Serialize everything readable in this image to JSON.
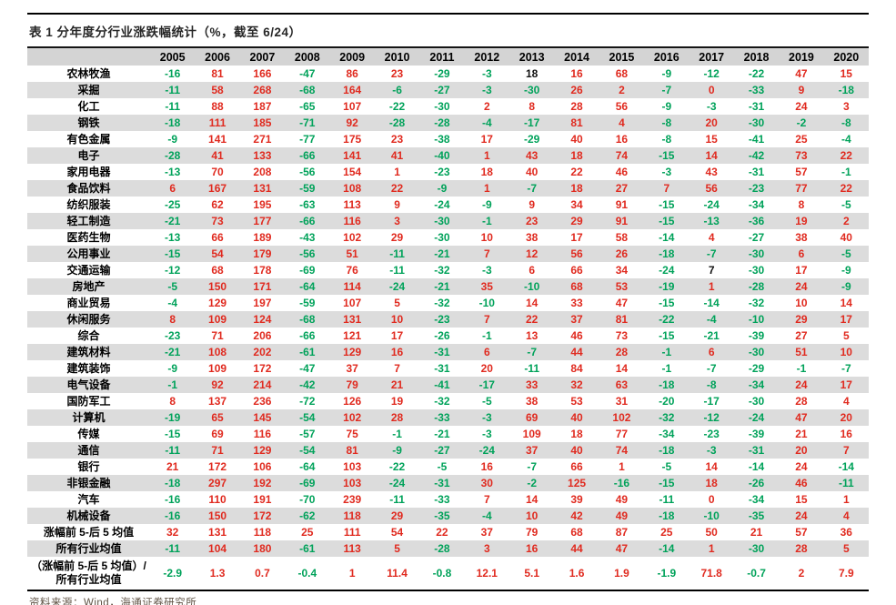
{
  "page": {
    "title": "表 1 分年度分行业涨跌幅统计（%，截至 6/24）",
    "source": "资料来源：Wind，海通证券研究所"
  },
  "colors": {
    "positive_value": "#e02a1f",
    "negative_value": "#00a25a",
    "neutral_value": "#111111",
    "header_bg": "#d4d4d4",
    "stripe_bg": "#dcdcdc",
    "title_text": "#262626",
    "source_text": "#5f5244"
  },
  "chart_data": {
    "type": "table",
    "columns": [
      "2005",
      "2006",
      "2007",
      "2008",
      "2009",
      "2010",
      "2011",
      "2012",
      "2013",
      "2014",
      "2015",
      "2016",
      "2017",
      "2018",
      "2019",
      "2020"
    ],
    "rows": [
      {
        "label": "农林牧渔",
        "values": [
          -16,
          81,
          166,
          -47,
          86,
          23,
          -29,
          -3,
          18,
          16,
          68,
          -9,
          -12,
          -22,
          47,
          15
        ]
      },
      {
        "label": "采掘",
        "values": [
          -11,
          58,
          268,
          -68,
          164,
          -6,
          -27,
          -3,
          -30,
          26,
          2,
          -7,
          0,
          -33,
          9,
          -18
        ]
      },
      {
        "label": "化工",
        "values": [
          -11,
          88,
          187,
          -65,
          107,
          -22,
          -30,
          2,
          8,
          28,
          56,
          -9,
          -3,
          -31,
          24,
          3
        ]
      },
      {
        "label": "钢铁",
        "values": [
          -18,
          111,
          185,
          -71,
          92,
          -28,
          -28,
          -4,
          -17,
          81,
          4,
          -8,
          20,
          -30,
          -2,
          -8
        ]
      },
      {
        "label": "有色金属",
        "values": [
          -9,
          141,
          271,
          -77,
          175,
          23,
          -38,
          17,
          -29,
          40,
          16,
          -8,
          15,
          -41,
          25,
          -4
        ]
      },
      {
        "label": "电子",
        "values": [
          -28,
          41,
          133,
          -66,
          141,
          41,
          -40,
          1,
          43,
          18,
          74,
          -15,
          14,
          -42,
          73,
          22
        ]
      },
      {
        "label": "家用电器",
        "values": [
          -13,
          70,
          208,
          -56,
          154,
          1,
          -23,
          18,
          40,
          22,
          46,
          -3,
          43,
          -31,
          57,
          -1
        ]
      },
      {
        "label": "食品饮料",
        "values": [
          6,
          167,
          131,
          -59,
          108,
          22,
          -9,
          1,
          -7,
          18,
          27,
          7,
          56,
          -23,
          77,
          22
        ]
      },
      {
        "label": "纺织服装",
        "values": [
          -25,
          62,
          195,
          -63,
          113,
          9,
          -24,
          -9,
          9,
          34,
          91,
          -15,
          -24,
          -34,
          8,
          -5
        ]
      },
      {
        "label": "轻工制造",
        "values": [
          -21,
          73,
          177,
          -66,
          116,
          3,
          -30,
          -1,
          23,
          29,
          91,
          -15,
          -13,
          -36,
          19,
          2
        ]
      },
      {
        "label": "医药生物",
        "values": [
          -13,
          66,
          189,
          -43,
          102,
          29,
          -30,
          10,
          38,
          17,
          58,
          -14,
          4,
          -27,
          38,
          40
        ]
      },
      {
        "label": "公用事业",
        "values": [
          -15,
          54,
          179,
          -56,
          51,
          -11,
          -21,
          7,
          12,
          56,
          26,
          -18,
          -7,
          -30,
          6,
          -5
        ]
      },
      {
        "label": "交通运输",
        "values": [
          -12,
          68,
          178,
          -69,
          76,
          -11,
          -32,
          -3,
          6,
          66,
          34,
          -24,
          7,
          -30,
          17,
          -9
        ]
      },
      {
        "label": "房地产",
        "values": [
          -5,
          150,
          171,
          -64,
          114,
          -24,
          -21,
          35,
          -10,
          68,
          53,
          -19,
          1,
          -28,
          24,
          -9
        ]
      },
      {
        "label": "商业贸易",
        "values": [
          -4,
          129,
          197,
          -59,
          107,
          5,
          -32,
          -10,
          14,
          33,
          47,
          -15,
          -14,
          -32,
          10,
          14
        ]
      },
      {
        "label": "休闲服务",
        "values": [
          8,
          109,
          124,
          -68,
          131,
          10,
          -23,
          7,
          22,
          37,
          81,
          -22,
          -4,
          -10,
          29,
          17
        ]
      },
      {
        "label": "综合",
        "values": [
          -23,
          71,
          206,
          -66,
          121,
          17,
          -26,
          -1,
          13,
          46,
          73,
          -15,
          -21,
          -39,
          27,
          5
        ]
      },
      {
        "label": "建筑材料",
        "values": [
          -21,
          108,
          202,
          -61,
          129,
          16,
          -31,
          6,
          -7,
          44,
          28,
          -1,
          6,
          -30,
          51,
          10
        ]
      },
      {
        "label": "建筑装饰",
        "values": [
          -9,
          109,
          172,
          -47,
          37,
          7,
          -31,
          20,
          -11,
          84,
          14,
          -1,
          -7,
          -29,
          -1,
          -7
        ]
      },
      {
        "label": "电气设备",
        "values": [
          -1,
          92,
          214,
          -42,
          79,
          21,
          -41,
          -17,
          33,
          32,
          63,
          -18,
          -8,
          -34,
          24,
          17
        ]
      },
      {
        "label": "国防军工",
        "values": [
          8,
          137,
          236,
          -72,
          126,
          19,
          -32,
          -5,
          38,
          53,
          31,
          -20,
          -17,
          -30,
          28,
          4
        ]
      },
      {
        "label": "计算机",
        "values": [
          -19,
          65,
          145,
          -54,
          102,
          28,
          -33,
          -3,
          69,
          40,
          102,
          -32,
          -12,
          -24,
          47,
          20
        ]
      },
      {
        "label": "传媒",
        "values": [
          -15,
          69,
          116,
          -57,
          75,
          -1,
          -21,
          -3,
          109,
          18,
          77,
          -34,
          -23,
          -39,
          21,
          16
        ]
      },
      {
        "label": "通信",
        "values": [
          -11,
          71,
          129,
          -54,
          81,
          -9,
          -27,
          -24,
          37,
          40,
          74,
          -18,
          -3,
          -31,
          20,
          7
        ]
      },
      {
        "label": "银行",
        "values": [
          21,
          172,
          106,
          -64,
          103,
          -22,
          -5,
          16,
          -7,
          66,
          1,
          -5,
          14,
          -14,
          24,
          -14
        ]
      },
      {
        "label": "非银金融",
        "values": [
          -18,
          297,
          192,
          -69,
          103,
          -24,
          -31,
          30,
          -2,
          125,
          -16,
          -15,
          18,
          -26,
          46,
          -11
        ]
      },
      {
        "label": "汽车",
        "values": [
          -16,
          110,
          191,
          -70,
          239,
          -11,
          -33,
          7,
          14,
          39,
          49,
          -11,
          0,
          -34,
          15,
          1
        ]
      },
      {
        "label": "机械设备",
        "values": [
          -16,
          150,
          172,
          -62,
          118,
          29,
          -35,
          -4,
          10,
          42,
          49,
          -18,
          -10,
          -35,
          24,
          4
        ]
      },
      {
        "label": "涨幅前 5-后 5 均值",
        "values": [
          32,
          131,
          118,
          25,
          111,
          54,
          22,
          37,
          79,
          68,
          87,
          25,
          50,
          21,
          57,
          36
        ]
      },
      {
        "label": "所有行业均值",
        "values": [
          -11,
          104,
          180,
          -61,
          113,
          5,
          -28,
          3,
          16,
          44,
          47,
          -14,
          1,
          -30,
          28,
          5
        ]
      },
      {
        "label": "（涨幅前 5-后 5 均值）/所有行业均值",
        "values": [
          -2.9,
          1.3,
          0.7,
          -0.4,
          1,
          11.4,
          -0.8,
          12.1,
          5.1,
          1.6,
          1.9,
          -1.9,
          71.8,
          -0.7,
          2,
          7.9
        ]
      }
    ],
    "black_cells": [
      [
        0,
        8
      ],
      [
        12,
        12
      ]
    ],
    "tall_label_rows": [
      30
    ]
  }
}
